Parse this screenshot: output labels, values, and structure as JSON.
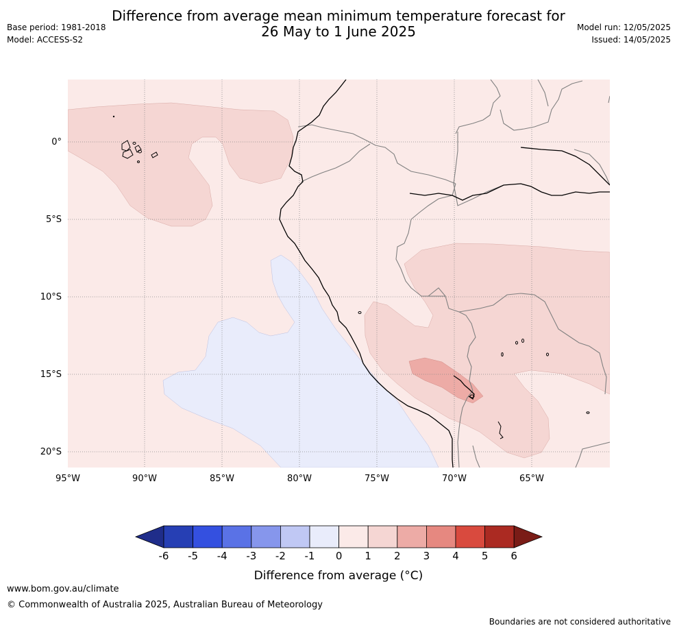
{
  "header": {
    "title_line1": "Difference from average mean minimum temperature forecast for",
    "title_line2": "26 May to 1 June 2025",
    "base_period": "Base period: 1981-2018",
    "model": "Model: ACCESS-S2",
    "model_run": "Model run: 12/05/2025",
    "issued": "Issued: 14/05/2025"
  },
  "map": {
    "lon_labels": [
      "95°W",
      "90°W",
      "85°W",
      "80°W",
      "75°W",
      "70°W",
      "65°W"
    ],
    "lat_labels": [
      "0°",
      "5°S",
      "10°S",
      "15°S",
      "20°S"
    ],
    "colors": {
      "ocean_background": "#fbeae8",
      "anomaly_1_2": "#f5d6d3",
      "anomaly_2_3": "#edaba6",
      "anomaly_neg1_0": "#e9ecfb",
      "coastline": "#000000",
      "borders": "#808080"
    }
  },
  "legend": {
    "tick_labels": [
      "-6",
      "-5",
      "-4",
      "-3",
      "-2",
      "-1",
      "0",
      "1",
      "2",
      "3",
      "4",
      "5",
      "6"
    ],
    "label": "Difference from average (°C)",
    "colors": [
      "#1f2d8a",
      "#263fb4",
      "#3450e0",
      "#5a72e6",
      "#8696ec",
      "#c0c8f4",
      "#e9ecfb",
      "#fbeae8",
      "#f5d6d3",
      "#edaba6",
      "#e68880",
      "#d94a3e",
      "#ab2a22",
      "#7a1c17"
    ]
  },
  "footer": {
    "website": "www.bom.gov.au/climate",
    "copyright": "© Commonwealth of Australia 2025, Australian Bureau of Meteorology",
    "disclaimer": "Boundaries are not considered authoritative"
  }
}
